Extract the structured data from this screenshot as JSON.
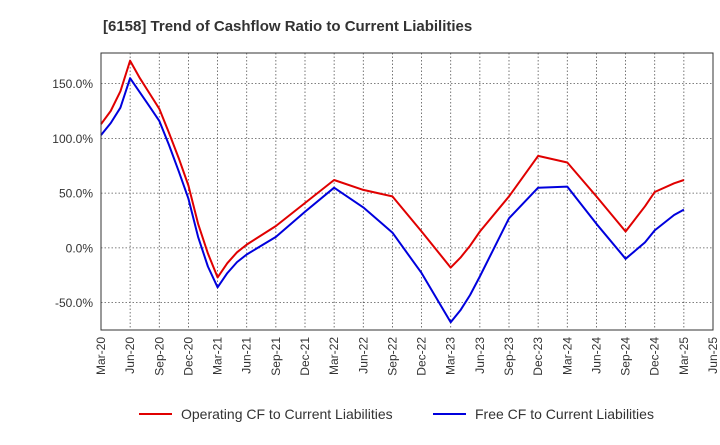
{
  "chart_data": {
    "type": "line",
    "title": "[6158]  Trend of Cashflow Ratio to Current Liabilities",
    "xlabel": "",
    "ylabel": "",
    "ylim": [
      -75,
      178
    ],
    "y_ticks": [
      -50,
      0,
      50,
      100,
      150
    ],
    "y_tick_labels": [
      "-50.0%",
      "0.0%",
      "50.0%",
      "100.0%",
      "150.0%"
    ],
    "x_tick_labels": [
      "Mar-20",
      "Jun-20",
      "Sep-20",
      "Dec-20",
      "Mar-21",
      "Jun-21",
      "Sep-21",
      "Dec-21",
      "Mar-22",
      "Jun-22",
      "Sep-22",
      "Dec-22",
      "Mar-23",
      "Jun-23",
      "Sep-23",
      "Dec-23",
      "Mar-24",
      "Jun-24",
      "Sep-24",
      "Dec-24",
      "Mar-25",
      "Jun-25"
    ],
    "grid": true,
    "legend_position": "bottom",
    "series": [
      {
        "name": "Operating CF to Current Liabilities",
        "color": "#e00000",
        "points": [
          {
            "x": "Mar-20",
            "y": 113
          },
          {
            "x": "Apr-20",
            "y": 125
          },
          {
            "x": "May-20",
            "y": 143
          },
          {
            "x": "Jun-20",
            "y": 171
          },
          {
            "x": "Jul-20",
            "y": 155
          },
          {
            "x": "Aug-20",
            "y": 141
          },
          {
            "x": "Sep-20",
            "y": 127
          },
          {
            "x": "Oct-20",
            "y": 105
          },
          {
            "x": "Nov-20",
            "y": 82
          },
          {
            "x": "Dec-20",
            "y": 57
          },
          {
            "x": "Jan-21",
            "y": 22
          },
          {
            "x": "Feb-21",
            "y": -5
          },
          {
            "x": "Mar-21",
            "y": -27
          },
          {
            "x": "Apr-21",
            "y": -14
          },
          {
            "x": "May-21",
            "y": -4
          },
          {
            "x": "Jun-21",
            "y": 3
          },
          {
            "x": "Sep-21",
            "y": 20
          },
          {
            "x": "Dec-21",
            "y": 41
          },
          {
            "x": "Mar-22",
            "y": 62
          },
          {
            "x": "Jun-22",
            "y": 53
          },
          {
            "x": "Sep-22",
            "y": 47
          },
          {
            "x": "Dec-22",
            "y": 15
          },
          {
            "x": "Mar-23",
            "y": -18
          },
          {
            "x": "Apr-23",
            "y": -9
          },
          {
            "x": "May-23",
            "y": 2
          },
          {
            "x": "Jun-23",
            "y": 15
          },
          {
            "x": "Sep-23",
            "y": 47
          },
          {
            "x": "Dec-23",
            "y": 84
          },
          {
            "x": "Mar-24",
            "y": 78
          },
          {
            "x": "Jun-24",
            "y": 47
          },
          {
            "x": "Sep-24",
            "y": 15
          },
          {
            "x": "Nov-24",
            "y": 38
          },
          {
            "x": "Dec-24",
            "y": 51
          },
          {
            "x": "Feb-25",
            "y": 59
          },
          {
            "x": "Mar-25",
            "y": 62
          }
        ]
      },
      {
        "name": "Free CF to Current Liabilities",
        "color": "#0000dd",
        "points": [
          {
            "x": "Mar-20",
            "y": 103
          },
          {
            "x": "Apr-20",
            "y": 114
          },
          {
            "x": "May-20",
            "y": 128
          },
          {
            "x": "Jun-20",
            "y": 155
          },
          {
            "x": "Jul-20",
            "y": 142
          },
          {
            "x": "Aug-20",
            "y": 129
          },
          {
            "x": "Sep-20",
            "y": 116
          },
          {
            "x": "Oct-20",
            "y": 94
          },
          {
            "x": "Nov-20",
            "y": 70
          },
          {
            "x": "Dec-20",
            "y": 45
          },
          {
            "x": "Jan-21",
            "y": 10
          },
          {
            "x": "Feb-21",
            "y": -17
          },
          {
            "x": "Mar-21",
            "y": -36
          },
          {
            "x": "Apr-21",
            "y": -23
          },
          {
            "x": "May-21",
            "y": -13
          },
          {
            "x": "Jun-21",
            "y": -6
          },
          {
            "x": "Sep-21",
            "y": 10
          },
          {
            "x": "Dec-21",
            "y": 33
          },
          {
            "x": "Mar-22",
            "y": 55
          },
          {
            "x": "Jun-22",
            "y": 37
          },
          {
            "x": "Sep-22",
            "y": 14
          },
          {
            "x": "Dec-22",
            "y": -23
          },
          {
            "x": "Mar-23",
            "y": -68
          },
          {
            "x": "Apr-23",
            "y": -57
          },
          {
            "x": "May-23",
            "y": -43
          },
          {
            "x": "Jun-23",
            "y": -26
          },
          {
            "x": "Sep-23",
            "y": 27
          },
          {
            "x": "Dec-23",
            "y": 55
          },
          {
            "x": "Mar-24",
            "y": 56
          },
          {
            "x": "Jun-24",
            "y": 22
          },
          {
            "x": "Sep-24",
            "y": -10
          },
          {
            "x": "Nov-24",
            "y": 5
          },
          {
            "x": "Dec-24",
            "y": 16
          },
          {
            "x": "Feb-25",
            "y": 30
          },
          {
            "x": "Mar-25",
            "y": 35
          }
        ]
      }
    ]
  }
}
